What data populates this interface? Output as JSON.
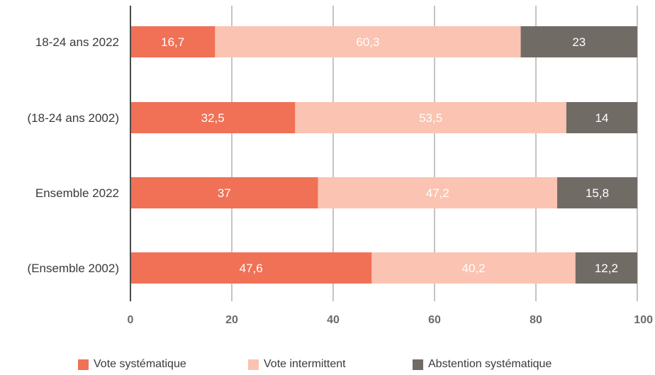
{
  "chart_data": {
    "type": "bar",
    "orientation": "horizontal",
    "stacked": true,
    "categories": [
      "18-24 ans 2022",
      "(18-24 ans 2002)",
      "Ensemble 2022",
      "(Ensemble 2002)"
    ],
    "series": [
      {
        "name": "Vote systématique",
        "color": "#f07156",
        "values": [
          16.7,
          32.5,
          37,
          47.6
        ],
        "labels": [
          "16,7",
          "32,5",
          "37",
          "47,6"
        ]
      },
      {
        "name": "Vote intermittent",
        "color": "#fbc3b2",
        "values": [
          60.3,
          53.5,
          47.2,
          40.2
        ],
        "labels": [
          "60,3",
          "53,5",
          "47,2",
          "40,2"
        ]
      },
      {
        "name": "Abstention systématique",
        "color": "#716b66",
        "values": [
          23,
          14,
          15.8,
          12.2
        ],
        "labels": [
          "23",
          "14",
          "15,8",
          "12,2"
        ]
      }
    ],
    "xlim": [
      0,
      100
    ],
    "xticks": [
      "0",
      "20",
      "40",
      "60",
      "80",
      "100"
    ],
    "grid": true,
    "legend_position": "bottom"
  }
}
